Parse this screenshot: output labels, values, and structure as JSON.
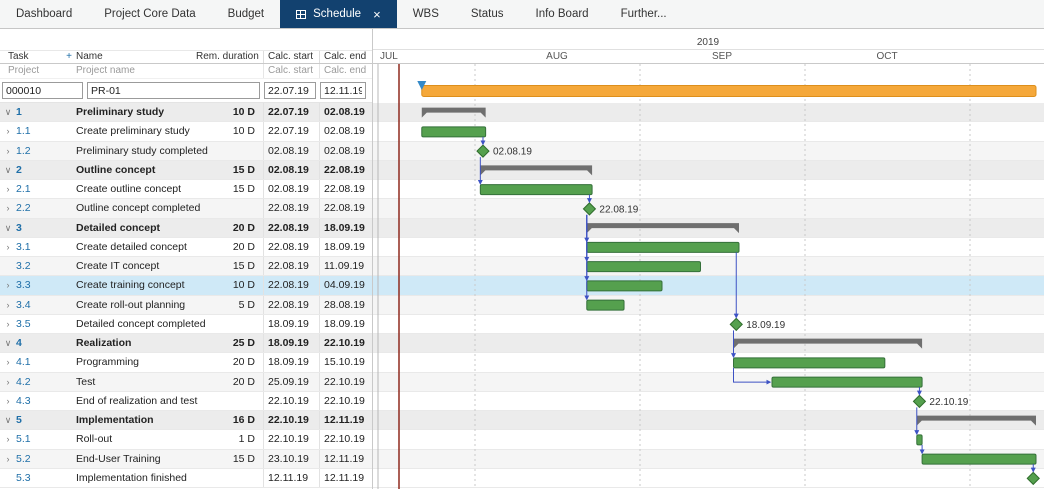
{
  "tabs": {
    "items": [
      {
        "label": "Dashboard",
        "active": false
      },
      {
        "label": "Project Core Data",
        "active": false
      },
      {
        "label": "Budget",
        "active": false
      },
      {
        "label": "Schedule",
        "active": true,
        "close_icon": "×"
      },
      {
        "label": "WBS",
        "active": false
      },
      {
        "label": "Status",
        "active": false
      },
      {
        "label": "Info Board",
        "active": false
      },
      {
        "label": "Further...",
        "active": false
      }
    ]
  },
  "icons": {
    "expand_parent": "∨",
    "expand_child": "›",
    "plus": "+"
  },
  "table": {
    "headers": {
      "task": "Task",
      "plus": "+",
      "name": "Name",
      "duration": "Rem. duration",
      "start": "Calc. start",
      "end": "Calc. end"
    },
    "filter_row": {
      "task": "Project",
      "name": "Project name",
      "start": "Calc. start",
      "end": "Calc. end"
    },
    "project_row": {
      "id": "000010",
      "name": "PR-01",
      "start": "22.07.19",
      "end": "12.11.19"
    },
    "rows": [
      {
        "num": "1",
        "name": "Preliminary study",
        "type": "phase",
        "dur": "10 D",
        "start": "22.07.19",
        "end": "02.08.19",
        "chev": true
      },
      {
        "num": "1.1",
        "name": "Create preliminary study",
        "type": "task",
        "dur": "10 D",
        "start": "22.07.19",
        "end": "02.08.19",
        "chev": true
      },
      {
        "num": "1.2",
        "name": "Preliminary study completed",
        "type": "milestone",
        "dur": "",
        "start": "02.08.19",
        "end": "02.08.19",
        "chev": true,
        "label": "02.08.19"
      },
      {
        "num": "2",
        "name": "Outline concept",
        "type": "phase",
        "dur": "15 D",
        "start": "02.08.19",
        "end": "22.08.19",
        "chev": true
      },
      {
        "num": "2.1",
        "name": "Create outline concept",
        "type": "task",
        "dur": "15 D",
        "start": "02.08.19",
        "end": "22.08.19",
        "chev": true
      },
      {
        "num": "2.2",
        "name": "Outline concept completed",
        "type": "milestone",
        "dur": "",
        "start": "22.08.19",
        "end": "22.08.19",
        "chev": true,
        "label": "22.08.19"
      },
      {
        "num": "3",
        "name": "Detailed concept",
        "type": "phase",
        "dur": "20 D",
        "start": "22.08.19",
        "end": "18.09.19",
        "chev": true
      },
      {
        "num": "3.1",
        "name": "Create detailed concept",
        "type": "task",
        "dur": "20 D",
        "start": "22.08.19",
        "end": "18.09.19",
        "chev": true
      },
      {
        "num": "3.2",
        "name": "Create IT concept",
        "type": "task",
        "dur": "15 D",
        "start": "22.08.19",
        "end": "11.09.19",
        "chev": false
      },
      {
        "num": "3.3",
        "name": "Create training concept",
        "type": "task",
        "dur": "10 D",
        "start": "22.08.19",
        "end": "04.09.19",
        "chev": true,
        "highlight": true
      },
      {
        "num": "3.4",
        "name": "Create roll-out planning",
        "type": "task",
        "dur": "5 D",
        "start": "22.08.19",
        "end": "28.08.19",
        "chev": true
      },
      {
        "num": "3.5",
        "name": "Detailed concept completed",
        "type": "milestone",
        "dur": "",
        "start": "18.09.19",
        "end": "18.09.19",
        "chev": true,
        "label": "18.09.19"
      },
      {
        "num": "4",
        "name": "Realization",
        "type": "phase",
        "dur": "25 D",
        "start": "18.09.19",
        "end": "22.10.19",
        "chev": true
      },
      {
        "num": "4.1",
        "name": "Programming",
        "type": "task",
        "dur": "20 D",
        "start": "18.09.19",
        "end": "15.10.19",
        "chev": true
      },
      {
        "num": "4.2",
        "name": "Test",
        "type": "task",
        "dur": "20 D",
        "start": "25.09.19",
        "end": "22.10.19",
        "chev": true
      },
      {
        "num": "4.3",
        "name": "End of realization and test",
        "type": "milestone",
        "dur": "",
        "start": "22.10.19",
        "end": "22.10.19",
        "chev": true,
        "label": "22.10.19"
      },
      {
        "num": "5",
        "name": "Implementation",
        "type": "phase",
        "dur": "16 D",
        "start": "22.10.19",
        "end": "12.11.19",
        "chev": true
      },
      {
        "num": "5.1",
        "name": "Roll-out",
        "type": "task",
        "dur": "1 D",
        "start": "22.10.19",
        "end": "22.10.19",
        "chev": true
      },
      {
        "num": "5.2",
        "name": "End-User Training",
        "type": "task",
        "dur": "15 D",
        "start": "23.10.19",
        "end": "12.11.19",
        "chev": true
      },
      {
        "num": "5.3",
        "name": "Implementation finished",
        "type": "milestone",
        "dur": "",
        "start": "12.11.19",
        "end": "12.11.19",
        "chev": false
      }
    ]
  },
  "gantt": {
    "year": "2019",
    "months": [
      "JUL",
      "AUG",
      "SEP",
      "OCT"
    ],
    "project_bar": {
      "start": "22.07.19",
      "end": "12.11.19"
    },
    "links": [
      {
        "from": "1.1",
        "to": "1.2",
        "type": "FS"
      },
      {
        "from": "1.2",
        "to": "2.1",
        "type": "FS"
      },
      {
        "from": "2.1",
        "to": "2.2",
        "type": "FS"
      },
      {
        "from": "2.2",
        "to": "3.1",
        "type": "FS"
      },
      {
        "from": "2.2",
        "to": "3.2",
        "type": "FS"
      },
      {
        "from": "2.2",
        "to": "3.3",
        "type": "FS"
      },
      {
        "from": "2.2",
        "to": "3.4",
        "type": "FS"
      },
      {
        "from": "3.1",
        "to": "3.5",
        "type": "FS"
      },
      {
        "from": "3.5",
        "to": "4.1",
        "type": "FS"
      },
      {
        "from": "4.1",
        "to": "4.2",
        "type": "SS"
      },
      {
        "from": "4.2",
        "to": "4.3",
        "type": "FS"
      },
      {
        "from": "4.3",
        "to": "5.1",
        "type": "FS"
      },
      {
        "from": "5.1",
        "to": "5.2",
        "type": "FS"
      },
      {
        "from": "5.2",
        "to": "5.3",
        "type": "FS"
      }
    ],
    "colors": {
      "active_tab": "#12416f",
      "bar_task": "#55a04e",
      "bar_task_border": "#35703a",
      "bar_phase": "#6f6f6f",
      "bar_project": "#f5a83a",
      "bar_project_border": "#dd8f1c",
      "milestone": "#55a04e",
      "milestone_border": "#2f6d2c",
      "link": "#3d52c4",
      "today_line": "#8f2a1e",
      "highlight_row": "#cfe9f7",
      "start_marker": "#3489c8"
    }
  }
}
